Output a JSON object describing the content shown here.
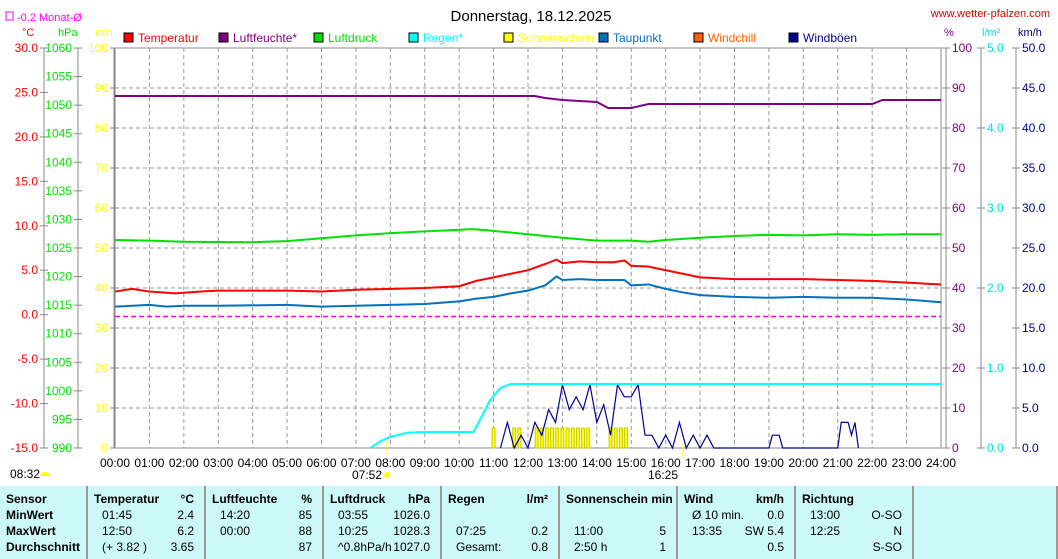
{
  "title": "Donnerstag, 18.12.2025",
  "source": "www.wetter-pfalzen.com",
  "month_avg_label": "-0.2 Monat-Ø",
  "moon_time": "08:32",
  "sunrise": "07:52",
  "sunset": "16:25",
  "colors": {
    "temp": "#ff0000",
    "hum": "#800080",
    "press": "#00e000",
    "rain": "#00ffff",
    "sun": "#ffff00",
    "dew": "#0070c0",
    "chill": "#ff6000",
    "gust": "#000090",
    "avg": "#ff00ff"
  },
  "chart_data": {
    "type": "line",
    "title": "Donnerstag, 18.12.2025",
    "x_ticks": [
      "00:00",
      "01:00",
      "02:00",
      "03:00",
      "04:00",
      "05:00",
      "06:00",
      "07:00",
      "08:00",
      "09:00",
      "10:00",
      "11:00",
      "12:00",
      "13:00",
      "14:00",
      "15:00",
      "16:00",
      "17:00",
      "18:00",
      "19:00",
      "20:00",
      "21:00",
      "22:00",
      "23:00",
      "24:00"
    ],
    "axes": {
      "temp": {
        "unit": "°C",
        "range": [
          -15,
          30
        ],
        "ticks": [
          "30.0",
          "25.0",
          "20.0",
          "15.0",
          "10.0",
          "5.0",
          "0.0",
          "-5.0",
          "-10.0",
          "-15.0"
        ]
      },
      "press": {
        "unit": "hPa",
        "range": [
          990,
          1060
        ],
        "ticks": [
          "1060",
          "1055",
          "1050",
          "1045",
          "1040",
          "1035",
          "1030",
          "1025",
          "1020",
          "1015",
          "1010",
          "1005",
          "1000",
          "995",
          "990"
        ]
      },
      "min": {
        "unit": "min",
        "range": [
          0,
          100
        ],
        "ticks": [
          "100",
          "90",
          "80",
          "70",
          "60",
          "50",
          "40",
          "30",
          "20",
          "10",
          "0"
        ]
      },
      "hum": {
        "unit": "%",
        "range": [
          0,
          100
        ],
        "ticks": [
          "100",
          "90",
          "80",
          "70",
          "60",
          "50",
          "40",
          "30",
          "20",
          "10",
          "0"
        ]
      },
      "rain": {
        "unit": "l/m²",
        "range": [
          0,
          5
        ],
        "ticks": [
          "5.0",
          "4.0",
          "3.0",
          "2.0",
          "1.0",
          "0.0"
        ]
      },
      "wind": {
        "unit": "km/h",
        "range": [
          0,
          50
        ],
        "ticks": [
          "50.0",
          "45.0",
          "40.0",
          "35.0",
          "30.0",
          "25.0",
          "20.0",
          "15.0",
          "10.0",
          "5.0",
          "0.0"
        ]
      }
    },
    "legend": [
      {
        "key": "temp",
        "label": "Temperatur"
      },
      {
        "key": "hum",
        "label": "Luftfeuchte*"
      },
      {
        "key": "press",
        "label": "Luftdruck"
      },
      {
        "key": "rain",
        "label": "Regen*"
      },
      {
        "key": "sun",
        "label": "Sonnenschein"
      },
      {
        "key": "dew",
        "label": "Taupunkt"
      },
      {
        "key": "chill",
        "label": "Windchill"
      },
      {
        "key": "gust",
        "label": "Windböen"
      }
    ],
    "series": {
      "temp": [
        [
          0,
          2.6
        ],
        [
          0.5,
          2.9
        ],
        [
          1,
          2.6
        ],
        [
          1.75,
          2.4
        ],
        [
          2.5,
          2.6
        ],
        [
          3,
          2.7
        ],
        [
          5,
          2.7
        ],
        [
          6,
          2.6
        ],
        [
          7,
          2.8
        ],
        [
          9,
          3.0
        ],
        [
          10,
          3.2
        ],
        [
          10.5,
          3.8
        ],
        [
          11,
          4.2
        ],
        [
          11.5,
          4.6
        ],
        [
          12,
          5.0
        ],
        [
          12.5,
          5.7
        ],
        [
          12.83,
          6.2
        ],
        [
          13,
          5.8
        ],
        [
          13.5,
          6.0
        ],
        [
          14,
          5.9
        ],
        [
          14.5,
          5.9
        ],
        [
          14.8,
          6.1
        ],
        [
          15,
          5.5
        ],
        [
          15.5,
          5.4
        ],
        [
          16,
          5.0
        ],
        [
          16.5,
          4.6
        ],
        [
          17,
          4.2
        ],
        [
          18,
          4.0
        ],
        [
          19,
          4.0
        ],
        [
          20,
          4.0
        ],
        [
          21,
          3.9
        ],
        [
          22,
          3.8
        ],
        [
          23,
          3.6
        ],
        [
          24,
          3.4
        ]
      ],
      "dew": [
        [
          0,
          0.9
        ],
        [
          1,
          1.1
        ],
        [
          1.5,
          0.9
        ],
        [
          2,
          1.0
        ],
        [
          3,
          1.0
        ],
        [
          5,
          1.1
        ],
        [
          6,
          0.9
        ],
        [
          7,
          1.0
        ],
        [
          9,
          1.2
        ],
        [
          10,
          1.5
        ],
        [
          10.5,
          1.8
        ],
        [
          11,
          2.0
        ],
        [
          11.5,
          2.4
        ],
        [
          12,
          2.7
        ],
        [
          12.5,
          3.3
        ],
        [
          12.83,
          4.3
        ],
        [
          13,
          3.9
        ],
        [
          13.5,
          4.0
        ],
        [
          14,
          3.9
        ],
        [
          14.8,
          3.9
        ],
        [
          15,
          3.3
        ],
        [
          15.5,
          3.4
        ],
        [
          16,
          2.9
        ],
        [
          16.5,
          2.5
        ],
        [
          17,
          2.2
        ],
        [
          18,
          2.0
        ],
        [
          19,
          1.9
        ],
        [
          20,
          2.0
        ],
        [
          21,
          1.9
        ],
        [
          22,
          1.9
        ],
        [
          23,
          1.7
        ],
        [
          24,
          1.4
        ]
      ],
      "hum": [
        [
          0,
          88
        ],
        [
          12.2,
          88
        ],
        [
          12.5,
          87.5
        ],
        [
          13,
          87
        ],
        [
          14,
          86.5
        ],
        [
          14.33,
          85
        ],
        [
          15,
          85
        ],
        [
          15.5,
          86
        ],
        [
          22,
          86
        ],
        [
          22.3,
          87
        ],
        [
          24,
          87
        ]
      ],
      "press": [
        [
          0,
          1026.4
        ],
        [
          1,
          1026.3
        ],
        [
          2,
          1026.1
        ],
        [
          3.9,
          1026.0
        ],
        [
          5,
          1026.2
        ],
        [
          6,
          1026.7
        ],
        [
          7,
          1027.2
        ],
        [
          8,
          1027.6
        ],
        [
          9,
          1027.9
        ],
        [
          10.4,
          1028.3
        ],
        [
          11,
          1028.0
        ],
        [
          12,
          1027.4
        ],
        [
          13,
          1026.8
        ],
        [
          14,
          1026.3
        ],
        [
          15,
          1026.3
        ],
        [
          15.5,
          1026.1
        ],
        [
          16,
          1026.4
        ],
        [
          17,
          1026.8
        ],
        [
          18,
          1027.1
        ],
        [
          19,
          1027.3
        ],
        [
          20,
          1027.2
        ],
        [
          21,
          1027.4
        ],
        [
          22,
          1027.3
        ],
        [
          23,
          1027.4
        ],
        [
          24,
          1027.4
        ]
      ],
      "rain": [
        [
          7.42,
          0
        ],
        [
          7.7,
          0.08
        ],
        [
          8,
          0.14
        ],
        [
          8.5,
          0.19
        ],
        [
          9,
          0.2
        ],
        [
          10.42,
          0.2
        ],
        [
          10.6,
          0.35
        ],
        [
          10.9,
          0.6
        ],
        [
          11.2,
          0.75
        ],
        [
          11.5,
          0.8
        ],
        [
          24,
          0.8
        ]
      ],
      "avg": [
        [
          0,
          -0.2
        ],
        [
          24,
          -0.2
        ]
      ],
      "gust": [
        [
          11.2,
          0
        ],
        [
          11.4,
          3.2
        ],
        [
          11.6,
          0
        ],
        [
          11.8,
          1.6
        ],
        [
          12,
          0
        ],
        [
          12.2,
          3.2
        ],
        [
          12.4,
          1.6
        ],
        [
          12.6,
          4.8
        ],
        [
          12.8,
          3.2
        ],
        [
          13,
          7.9
        ],
        [
          13.2,
          4.8
        ],
        [
          13.4,
          6.4
        ],
        [
          13.6,
          4.8
        ],
        [
          13.8,
          7.9
        ],
        [
          14,
          3.2
        ],
        [
          14.2,
          5.4
        ],
        [
          14.4,
          1.6
        ],
        [
          14.6,
          7.9
        ],
        [
          14.8,
          6.4
        ],
        [
          15,
          6.4
        ],
        [
          15.2,
          7.9
        ],
        [
          15.4,
          1.6
        ],
        [
          15.6,
          1.6
        ],
        [
          15.8,
          0
        ],
        [
          16,
          1.6
        ],
        [
          16.2,
          0
        ],
        [
          16.4,
          3.2
        ],
        [
          16.6,
          0
        ],
        [
          16.8,
          1.6
        ],
        [
          17,
          0
        ],
        [
          17.2,
          1.6
        ],
        [
          17.4,
          0
        ],
        [
          19,
          0
        ],
        [
          19.1,
          1.6
        ],
        [
          19.3,
          1.6
        ],
        [
          19.4,
          0
        ],
        [
          21,
          0
        ],
        [
          21.1,
          3.2
        ],
        [
          21.3,
          3.2
        ],
        [
          21.4,
          1.6
        ],
        [
          21.5,
          3.2
        ],
        [
          21.6,
          0
        ]
      ],
      "sun": [
        [
          11.0,
          5
        ],
        [
          11.6,
          5
        ],
        [
          11.75,
          5
        ],
        [
          12.25,
          5
        ],
        [
          12.4,
          5
        ],
        [
          12.55,
          5
        ],
        [
          12.7,
          5
        ],
        [
          12.85,
          5
        ],
        [
          13.0,
          5
        ],
        [
          13.15,
          5
        ],
        [
          13.3,
          5
        ],
        [
          13.45,
          5
        ],
        [
          13.6,
          5
        ],
        [
          13.75,
          5
        ],
        [
          14.4,
          5
        ],
        [
          14.55,
          5
        ],
        [
          14.7,
          5
        ],
        [
          14.85,
          5
        ]
      ]
    }
  },
  "table": {
    "cols": [
      {
        "h": [
          "Sensor",
          ""
        ],
        "rows": [
          [
            "MinWert",
            ""
          ],
          [
            "MaxWert",
            ""
          ],
          [
            "Durchschnitt",
            ""
          ]
        ]
      },
      {
        "h": [
          "Temperatur",
          "°C"
        ],
        "rows": [
          [
            "01:45",
            "2.4"
          ],
          [
            "12:50",
            "6.2"
          ],
          [
            "(+ 3.82 )",
            "3.65"
          ]
        ]
      },
      {
        "h": [
          "Luftfeuchte",
          "%"
        ],
        "rows": [
          [
            "14:20",
            "85"
          ],
          [
            "00:00",
            "88"
          ],
          [
            "",
            "87"
          ]
        ]
      },
      {
        "h": [
          "Luftdruck",
          "hPa"
        ],
        "rows": [
          [
            "03:55",
            "1026.0"
          ],
          [
            "10:25",
            "1028.3"
          ],
          [
            "^0.8hPa/h",
            "1027.0"
          ]
        ]
      },
      {
        "h": [
          "Regen",
          "l/m²"
        ],
        "rows": [
          [
            "",
            ""
          ],
          [
            "07:25",
            "0.2"
          ],
          [
            "Gesamt:",
            "0.8"
          ]
        ]
      },
      {
        "h": [
          "Sonnenschein min",
          ""
        ],
        "rows": [
          [
            "",
            ""
          ],
          [
            "11:00",
            "5"
          ],
          [
            "2:50 h",
            "1"
          ]
        ]
      },
      {
        "h": [
          "Wind",
          "km/h"
        ],
        "rows": [
          [
            "Ø 10 min.",
            "0.0"
          ],
          [
            "13:35",
            "SW 5.4"
          ],
          [
            "",
            "0.5"
          ]
        ]
      },
      {
        "h": [
          "Richtung",
          ""
        ],
        "rows": [
          [
            "13:00",
            "O-SO"
          ],
          [
            "12:25",
            "N"
          ],
          [
            "",
            "S-SO"
          ]
        ]
      }
    ]
  }
}
